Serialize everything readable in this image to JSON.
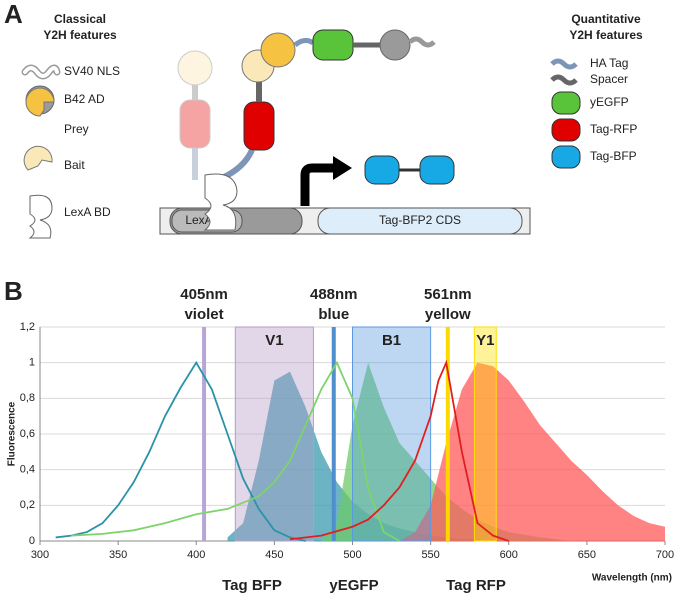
{
  "panel_a": {
    "label": "A",
    "classical_title": [
      "Classical",
      "Y2H features"
    ],
    "classical_items": [
      "SV40 NLS",
      "B42 AD",
      "Prey",
      "Bait",
      "LexA BD"
    ],
    "quantitative_title": [
      "Quantitative",
      "Y2H features"
    ],
    "quantitative_items": [
      "HA Tag",
      "Spacer",
      "yEGFP",
      "Tag-RFP",
      "Tag-BFP"
    ],
    "operator": "LexA op",
    "cds": "Tag-BFP2 CDS"
  },
  "chart_data": {
    "type": "spectra",
    "panel_label": "B",
    "x_label": "Wavelength (nm)",
    "y_label": "Fluorescence",
    "xlim": [
      300,
      700
    ],
    "xticks": [
      300,
      350,
      400,
      450,
      500,
      550,
      600,
      650,
      700
    ],
    "ylim": [
      0,
      1.2
    ],
    "yticks": [
      0,
      {
        "value": 0.2,
        "label": "0,2"
      },
      {
        "value": 0.4,
        "label": "0,4"
      },
      {
        "value": 0.6,
        "label": "0,6"
      },
      {
        "value": 0.8,
        "label": "0,8"
      },
      1,
      {
        "value": 1.2,
        "label": "1,2"
      }
    ],
    "series": [
      {
        "name": "Tag BFP",
        "color": "#2a93a8",
        "fill": "#3b9bb0",
        "label_color": "#2a93a8",
        "excitation": {
          "x": [
            310,
            320,
            330,
            340,
            350,
            360,
            370,
            380,
            390,
            400,
            410,
            420,
            430,
            440,
            450,
            460,
            470
          ],
          "values": [
            0.02,
            0.03,
            0.05,
            0.1,
            0.2,
            0.33,
            0.5,
            0.7,
            0.86,
            1.0,
            0.85,
            0.6,
            0.35,
            0.18,
            0.06,
            0.02,
            0
          ]
        },
        "emission": {
          "x": [
            420,
            430,
            440,
            450,
            460,
            470,
            480,
            490,
            500,
            510,
            520,
            530,
            540,
            550,
            560,
            570,
            580,
            590,
            600
          ],
          "values": [
            0.02,
            0.1,
            0.45,
            0.9,
            0.95,
            0.75,
            0.5,
            0.33,
            0.22,
            0.15,
            0.1,
            0.07,
            0.05,
            0.03,
            0.02,
            0.01,
            0.01,
            0,
            0
          ]
        }
      },
      {
        "name": "yEGFP",
        "color": "#7ed36b",
        "fill": "#6cc96b",
        "label_color": "#8ccf3f",
        "excitation": {
          "x": [
            320,
            340,
            360,
            380,
            400,
            420,
            440,
            450,
            460,
            470,
            480,
            490,
            500,
            510,
            520,
            530
          ],
          "values": [
            0.03,
            0.04,
            0.06,
            0.1,
            0.15,
            0.18,
            0.25,
            0.33,
            0.45,
            0.65,
            0.85,
            1.0,
            0.8,
            0.3,
            0.05,
            0
          ]
        },
        "emission": {
          "x": [
            480,
            490,
            500,
            510,
            520,
            530,
            540,
            550,
            560,
            570,
            580,
            590,
            600,
            620,
            640
          ],
          "values": [
            0,
            0.1,
            0.65,
            1.0,
            0.75,
            0.55,
            0.45,
            0.35,
            0.25,
            0.18,
            0.12,
            0.08,
            0.05,
            0.02,
            0
          ]
        }
      },
      {
        "name": "Tag RFP",
        "color": "#e02020",
        "fill": "#ff5a5a",
        "label_color": "#d42020",
        "excitation": {
          "x": [
            460,
            480,
            500,
            510,
            520,
            530,
            540,
            550,
            555,
            560,
            570,
            580,
            590,
            600
          ],
          "values": [
            0.01,
            0.03,
            0.08,
            0.12,
            0.2,
            0.3,
            0.45,
            0.7,
            0.9,
            1.0,
            0.5,
            0.1,
            0.03,
            0
          ]
        },
        "emission": {
          "x": [
            530,
            540,
            550,
            560,
            570,
            580,
            590,
            600,
            610,
            620,
            630,
            640,
            650,
            660,
            670,
            680,
            690,
            700
          ],
          "values": [
            0,
            0.05,
            0.2,
            0.55,
            0.85,
            1.0,
            0.98,
            0.9,
            0.78,
            0.65,
            0.55,
            0.45,
            0.37,
            0.28,
            0.2,
            0.14,
            0.1,
            0.08
          ]
        }
      }
    ],
    "lasers": [
      {
        "wavelength": 405,
        "name": "405nm",
        "color_name": "violet",
        "color": "#b8a5d6",
        "label_color": "#cc33cc"
      },
      {
        "wavelength": 488,
        "name": "488nm",
        "color_name": "blue",
        "color": "#4f8fce",
        "label_color": "#2c78bf"
      },
      {
        "wavelength": 561,
        "name": "561nm",
        "color_name": "yellow",
        "color": "#ffd800",
        "label_color": "#f5c400"
      }
    ],
    "filters": [
      {
        "name": "V1",
        "range": [
          425,
          475
        ],
        "color": "#b49cc8",
        "label_color": "#cc33cc"
      },
      {
        "name": "B1",
        "range": [
          500,
          550
        ],
        "color": "#5b9ae0",
        "label_color": "#2c78bf"
      },
      {
        "name": "Y1",
        "range": [
          578,
          592
        ],
        "color": "#ffe000",
        "label_color": "#fff3a0"
      }
    ]
  }
}
